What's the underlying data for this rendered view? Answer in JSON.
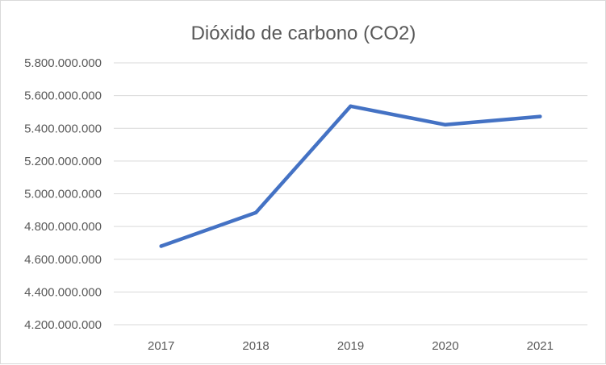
{
  "chart_data": {
    "type": "line",
    "title": "Dióxido de carbono (CO2)",
    "xlabel": "",
    "ylabel": "",
    "categories": [
      "2017",
      "2018",
      "2019",
      "2020",
      "2021"
    ],
    "series": [
      {
        "name": "CO2",
        "values": [
          4680000000,
          4885000000,
          5535000000,
          5422000000,
          5472000000
        ],
        "color": "#4472c4"
      }
    ],
    "ylim": [
      4200000000,
      5800000000
    ],
    "yticks": [
      4200000000,
      4400000000,
      4600000000,
      4800000000,
      5000000000,
      5200000000,
      5400000000,
      5600000000,
      5800000000
    ],
    "ytick_labels": [
      "4.200.000.000",
      "4.400.000.000",
      "4.600.000.000",
      "4.800.000.000",
      "5.000.000.000",
      "5.200.000.000",
      "5.400.000.000",
      "5.600.000.000",
      "5.800.000.000"
    ],
    "grid": true,
    "legend": "none"
  }
}
